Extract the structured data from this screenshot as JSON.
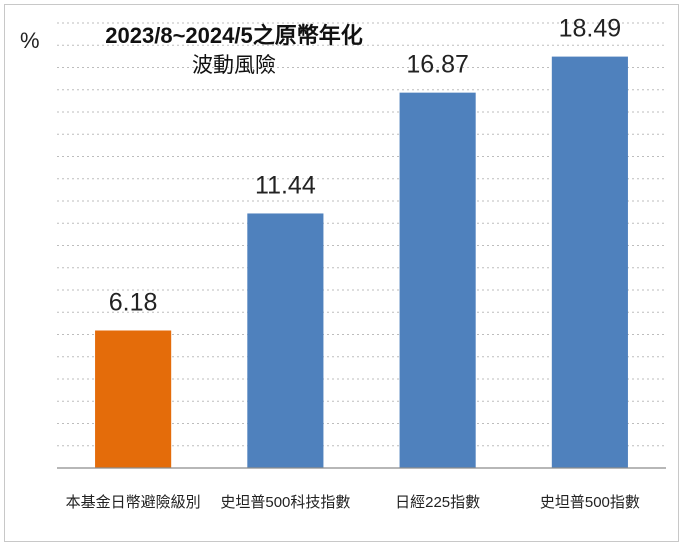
{
  "chart_data": {
    "type": "bar",
    "title_line1": "2023/8~2024/5之原幣年化",
    "title_line2": "波動風險",
    "unit_label": "%",
    "categories": [
      "本基金日幣避險級別",
      "史坦普500科技指數",
      "日經225指數",
      "史坦普500指數"
    ],
    "values": [
      6.18,
      11.44,
      16.87,
      18.49
    ],
    "value_labels": [
      "6.18",
      "11.44",
      "16.87",
      "18.49"
    ],
    "colors": [
      "#E46C0A",
      "#4F81BD",
      "#4F81BD",
      "#4F81BD"
    ],
    "ylim": [
      0,
      20
    ],
    "grid": true,
    "legend": "none"
  }
}
